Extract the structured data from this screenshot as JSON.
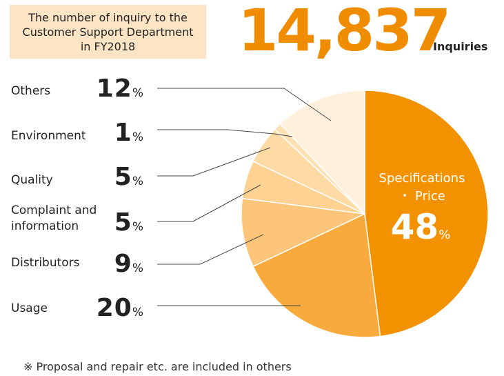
{
  "header": {
    "title": "The number of inquiry to the Customer Support Department in FY2018",
    "total": "14,837",
    "unit": "Inquiries"
  },
  "footnote": "※ Proposal and repair etc. are included in others",
  "chart_data": {
    "type": "pie",
    "title": "The number of inquiry to the Customer Support Department in FY2018",
    "total": 14837,
    "slices": [
      {
        "label": "Specifications ・ Price",
        "value": 48,
        "color": "#f39200"
      },
      {
        "label": "Usage",
        "value": 20,
        "color": "#f9aa3c"
      },
      {
        "label": "Distributors",
        "value": 9,
        "color": "#fdc57a"
      },
      {
        "label": "Complaint and information",
        "value": 5,
        "color": "#fed293"
      },
      {
        "label": "Quality",
        "value": 5,
        "color": "#fedaa5"
      },
      {
        "label": "Environment",
        "value": 1,
        "color": "#fee0b5"
      },
      {
        "label": "Others",
        "value": 12,
        "color": "#fff0dc"
      }
    ],
    "inner_label": {
      "line1": "Specifications",
      "line2": "・ Price",
      "value": "48",
      "unit": "%"
    },
    "percent_symbol": "%"
  }
}
